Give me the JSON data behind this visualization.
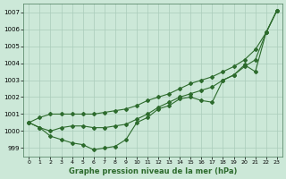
{
  "title": "Graphe pression niveau de la mer (hPa)",
  "bg_color": "#cce8d8",
  "grid_color": "#aaccbb",
  "line_color": "#2d6b2d",
  "xlim": [
    -0.5,
    23.5
  ],
  "ylim": [
    998.5,
    1007.5
  ],
  "yticks": [
    999,
    1000,
    1001,
    1002,
    1003,
    1004,
    1005,
    1006,
    1007
  ],
  "xticks": [
    0,
    1,
    2,
    3,
    4,
    5,
    6,
    7,
    8,
    9,
    10,
    11,
    12,
    13,
    14,
    15,
    16,
    17,
    18,
    19,
    20,
    21,
    22,
    23
  ],
  "line1": [
    1000.5,
    1000.2,
    999.7,
    999.5,
    999.3,
    999.2,
    998.9,
    999.0,
    999.1,
    999.5,
    1000.5,
    1000.8,
    1001.3,
    1001.5,
    1001.9,
    1002.0,
    1001.8,
    1001.7,
    1003.0,
    1003.3,
    1003.9,
    1003.5,
    1005.8,
    1007.1
  ],
  "line2": [
    1000.5,
    1000.2,
    1000.0,
    1000.2,
    1000.3,
    1000.3,
    1000.2,
    1000.2,
    1000.3,
    1000.4,
    1000.7,
    1001.0,
    1001.4,
    1001.7,
    1002.0,
    1002.2,
    1002.4,
    1002.6,
    1003.0,
    1003.3,
    1003.8,
    1004.2,
    1005.8,
    1007.1
  ],
  "line3": [
    1000.5,
    1000.8,
    1001.0,
    1001.0,
    1001.0,
    1001.0,
    1001.0,
    1001.1,
    1001.2,
    1001.3,
    1001.5,
    1001.8,
    1002.0,
    1002.2,
    1002.5,
    1002.8,
    1003.0,
    1003.2,
    1003.5,
    1003.8,
    1004.2,
    1004.8,
    1005.8,
    1007.1
  ],
  "title_fontsize": 6,
  "tick_fontsize": 5,
  "xlabel_fontsize": 4.5
}
